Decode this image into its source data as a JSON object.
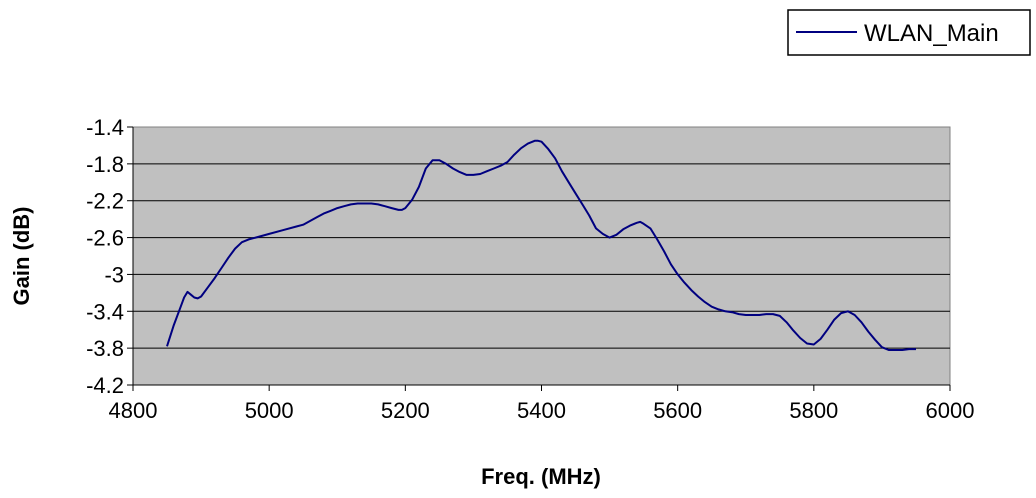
{
  "chart_data": {
    "type": "line",
    "title": "",
    "xlabel": "Freq. (MHz)",
    "ylabel": "Gain (dB)",
    "xlim": [
      4800,
      6000
    ],
    "ylim": [
      -4.2,
      -1.4
    ],
    "xticks": [
      4800,
      5000,
      5200,
      5400,
      5600,
      5800,
      6000
    ],
    "yticks": [
      -1.4,
      -1.8,
      -2.2,
      -2.6,
      -3,
      -3.4,
      -3.8,
      -4.2
    ],
    "xtick_labels": [
      "4800",
      "5000",
      "5200",
      "5400",
      "5600",
      "5800",
      "6000"
    ],
    "ytick_labels": [
      "-1.4",
      "-1.8",
      "-2.2",
      "-2.6",
      "-3",
      "-3.4",
      "-3.8",
      "-4.2"
    ],
    "grid": "horizontal",
    "plot_background": "#c0c0c0",
    "legend_position": "top-right",
    "series": [
      {
        "name": "WLAN_Main",
        "color": "#000080",
        "x": [
          4850,
          4860,
          4870,
          4875,
          4880,
          4885,
          4890,
          4895,
          4900,
          4910,
          4920,
          4930,
          4940,
          4950,
          4960,
          4970,
          4980,
          5000,
          5020,
          5040,
          5050,
          5060,
          5070,
          5080,
          5090,
          5100,
          5110,
          5120,
          5130,
          5140,
          5150,
          5160,
          5170,
          5180,
          5190,
          5195,
          5200,
          5210,
          5220,
          5230,
          5240,
          5250,
          5260,
          5270,
          5280,
          5290,
          5300,
          5310,
          5320,
          5330,
          5340,
          5350,
          5360,
          5370,
          5380,
          5390,
          5395,
          5400,
          5410,
          5420,
          5430,
          5440,
          5450,
          5460,
          5470,
          5480,
          5490,
          5500,
          5510,
          5520,
          5530,
          5540,
          5545,
          5550,
          5560,
          5570,
          5580,
          5590,
          5600,
          5610,
          5620,
          5630,
          5640,
          5650,
          5660,
          5670,
          5680,
          5690,
          5700,
          5710,
          5720,
          5730,
          5740,
          5750,
          5760,
          5770,
          5780,
          5790,
          5800,
          5810,
          5820,
          5830,
          5840,
          5850,
          5860,
          5870,
          5880,
          5890,
          5900,
          5910,
          5920,
          5930,
          5940,
          5950
        ],
        "y": [
          -3.78,
          -3.55,
          -3.35,
          -3.25,
          -3.19,
          -3.22,
          -3.25,
          -3.26,
          -3.24,
          -3.14,
          -3.04,
          -2.93,
          -2.82,
          -2.72,
          -2.65,
          -2.62,
          -2.6,
          -2.56,
          -2.52,
          -2.48,
          -2.46,
          -2.42,
          -2.38,
          -2.34,
          -2.31,
          -2.28,
          -2.26,
          -2.24,
          -2.23,
          -2.23,
          -2.23,
          -2.24,
          -2.26,
          -2.28,
          -2.3,
          -2.3,
          -2.28,
          -2.19,
          -2.05,
          -1.85,
          -1.76,
          -1.76,
          -1.8,
          -1.85,
          -1.89,
          -1.92,
          -1.92,
          -1.91,
          -1.88,
          -1.85,
          -1.82,
          -1.78,
          -1.7,
          -1.63,
          -1.58,
          -1.55,
          -1.55,
          -1.56,
          -1.64,
          -1.74,
          -1.88,
          -2.0,
          -2.12,
          -2.24,
          -2.36,
          -2.5,
          -2.56,
          -2.6,
          -2.57,
          -2.51,
          -2.47,
          -2.44,
          -2.43,
          -2.45,
          -2.5,
          -2.62,
          -2.75,
          -2.89,
          -3.0,
          -3.09,
          -3.17,
          -3.24,
          -3.3,
          -3.35,
          -3.38,
          -3.4,
          -3.41,
          -3.43,
          -3.44,
          -3.44,
          -3.44,
          -3.43,
          -3.43,
          -3.45,
          -3.52,
          -3.61,
          -3.69,
          -3.75,
          -3.76,
          -3.7,
          -3.6,
          -3.49,
          -3.42,
          -3.4,
          -3.44,
          -3.52,
          -3.62,
          -3.71,
          -3.79,
          -3.82,
          -3.82,
          -3.82,
          -3.81,
          -3.81
        ]
      }
    ]
  }
}
